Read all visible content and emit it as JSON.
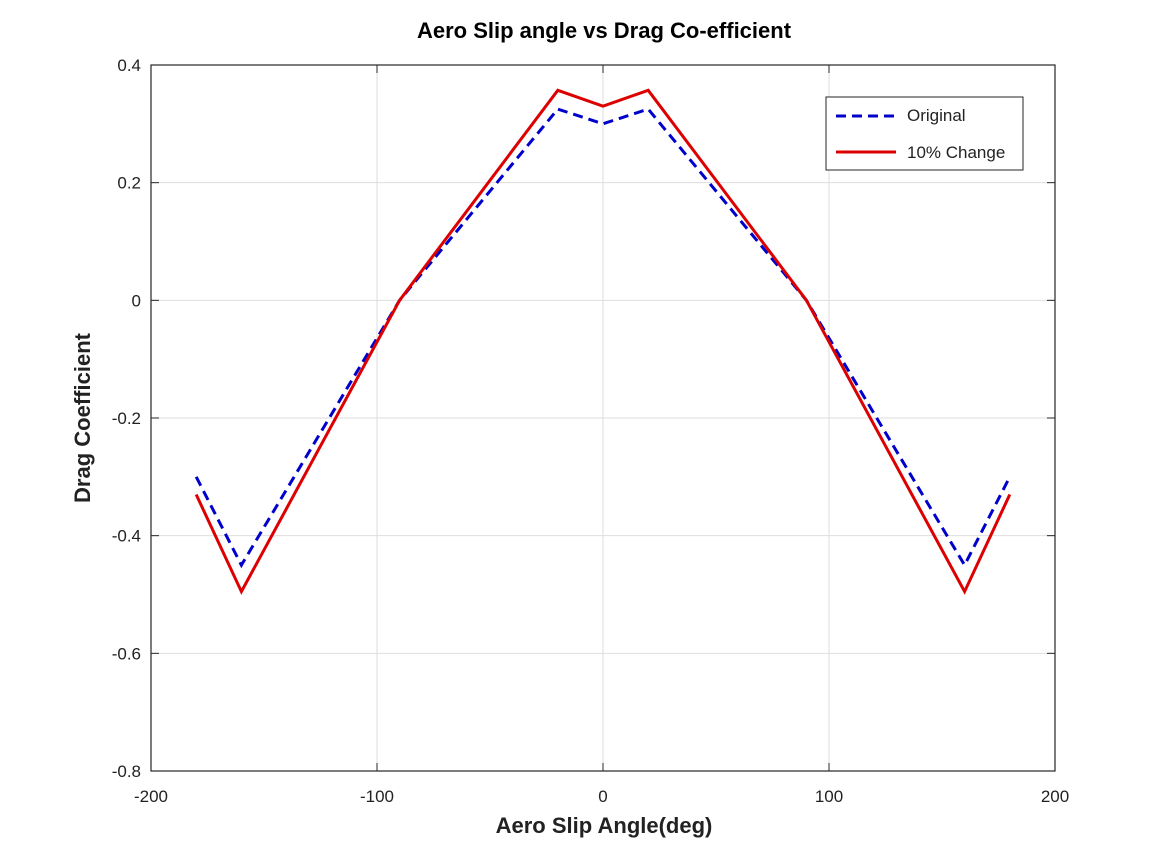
{
  "chart_data": {
    "type": "line",
    "title": "Aero Slip angle vs Drag Co-efficient",
    "xlabel": "Aero Slip Angle(deg)",
    "ylabel": "Drag Coefficient",
    "xlim": [
      -200,
      200
    ],
    "ylim": [
      -0.8,
      0.4
    ],
    "xticks": [
      -200,
      -100,
      0,
      100,
      200
    ],
    "xtick_labels": [
      "-200",
      "-100",
      "0",
      "100",
      "200"
    ],
    "yticks": [
      -0.8,
      -0.6,
      -0.4,
      -0.2,
      0,
      0.2,
      0.4
    ],
    "ytick_labels": [
      "-0.8",
      "-0.6",
      "-0.4",
      "-0.2",
      "0",
      "0.2",
      "0.4"
    ],
    "grid": true,
    "legend_position": "top-right",
    "series": [
      {
        "name": "Original",
        "color": "#0000cc",
        "style": "dashed",
        "x": [
          -180,
          -160,
          -90,
          -20,
          0,
          20,
          90,
          160,
          180
        ],
        "y": [
          -0.3,
          -0.45,
          0.0,
          0.325,
          0.3,
          0.325,
          0.0,
          -0.45,
          -0.3
        ]
      },
      {
        "name": "10% Change",
        "color": "#dd0000",
        "style": "solid",
        "x": [
          -180,
          -160,
          -90,
          -20,
          0,
          20,
          90,
          160,
          180
        ],
        "y": [
          -0.33,
          -0.495,
          0.0,
          0.357,
          0.33,
          0.357,
          0.0,
          -0.495,
          -0.33
        ]
      }
    ]
  }
}
